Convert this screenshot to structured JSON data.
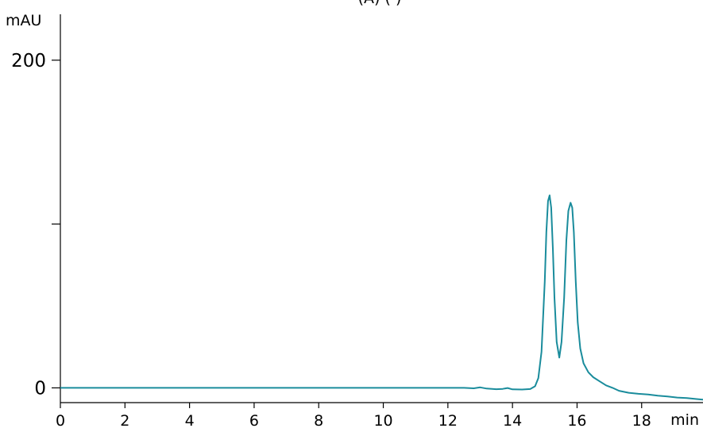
{
  "chart_data": {
    "type": "line",
    "title": "(A)       (   )",
    "xlabel": "min",
    "ylabel": "mAU",
    "xlim": [
      0,
      19.9
    ],
    "ylim": [
      -9,
      228
    ],
    "x_ticks": [
      0,
      2,
      4,
      6,
      8,
      10,
      12,
      14,
      16,
      18
    ],
    "x_tick_labels": [
      "0",
      "2",
      "4",
      "6",
      "8",
      "10",
      "12",
      "14",
      "16",
      "18"
    ],
    "y_ticks": [
      0,
      100,
      200
    ],
    "y_tick_labels": [
      "0",
      "",
      "200"
    ],
    "grid": false,
    "line_color": "#1a8c9c",
    "series": [
      {
        "points": [
          [
            0,
            0
          ],
          [
            2,
            0
          ],
          [
            4,
            0
          ],
          [
            6,
            0
          ],
          [
            8,
            0
          ],
          [
            10,
            0
          ],
          [
            12,
            0
          ],
          [
            12.5,
            0
          ],
          [
            12.8,
            -0.3
          ],
          [
            13.0,
            0.3
          ],
          [
            13.2,
            -0.4
          ],
          [
            13.5,
            -0.8
          ],
          [
            13.7,
            -0.6
          ],
          [
            13.85,
            -0.1
          ],
          [
            14.0,
            -0.9
          ],
          [
            14.3,
            -1.0
          ],
          [
            14.55,
            -0.7
          ],
          [
            14.7,
            1.0
          ],
          [
            14.8,
            6
          ],
          [
            14.9,
            22
          ],
          [
            15.0,
            65
          ],
          [
            15.05,
            95
          ],
          [
            15.1,
            114
          ],
          [
            15.15,
            117.5
          ],
          [
            15.2,
            110
          ],
          [
            15.25,
            85
          ],
          [
            15.3,
            55
          ],
          [
            15.37,
            28
          ],
          [
            15.45,
            18.5
          ],
          [
            15.52,
            28
          ],
          [
            15.6,
            55
          ],
          [
            15.67,
            90
          ],
          [
            15.73,
            108
          ],
          [
            15.8,
            113
          ],
          [
            15.85,
            110
          ],
          [
            15.9,
            95
          ],
          [
            15.96,
            65
          ],
          [
            16.02,
            40
          ],
          [
            16.1,
            24
          ],
          [
            16.2,
            15
          ],
          [
            16.35,
            9.5
          ],
          [
            16.5,
            6.5
          ],
          [
            16.7,
            4.0
          ],
          [
            16.9,
            1.5
          ],
          [
            17.1,
            0.0
          ],
          [
            17.3,
            -1.8
          ],
          [
            17.6,
            -3.0
          ],
          [
            17.9,
            -3.6
          ],
          [
            18.2,
            -4.0
          ],
          [
            18.5,
            -4.8
          ],
          [
            18.8,
            -5.2
          ],
          [
            19.1,
            -5.9
          ],
          [
            19.4,
            -6.2
          ],
          [
            19.7,
            -6.8
          ],
          [
            19.9,
            -7.2
          ]
        ]
      }
    ]
  }
}
